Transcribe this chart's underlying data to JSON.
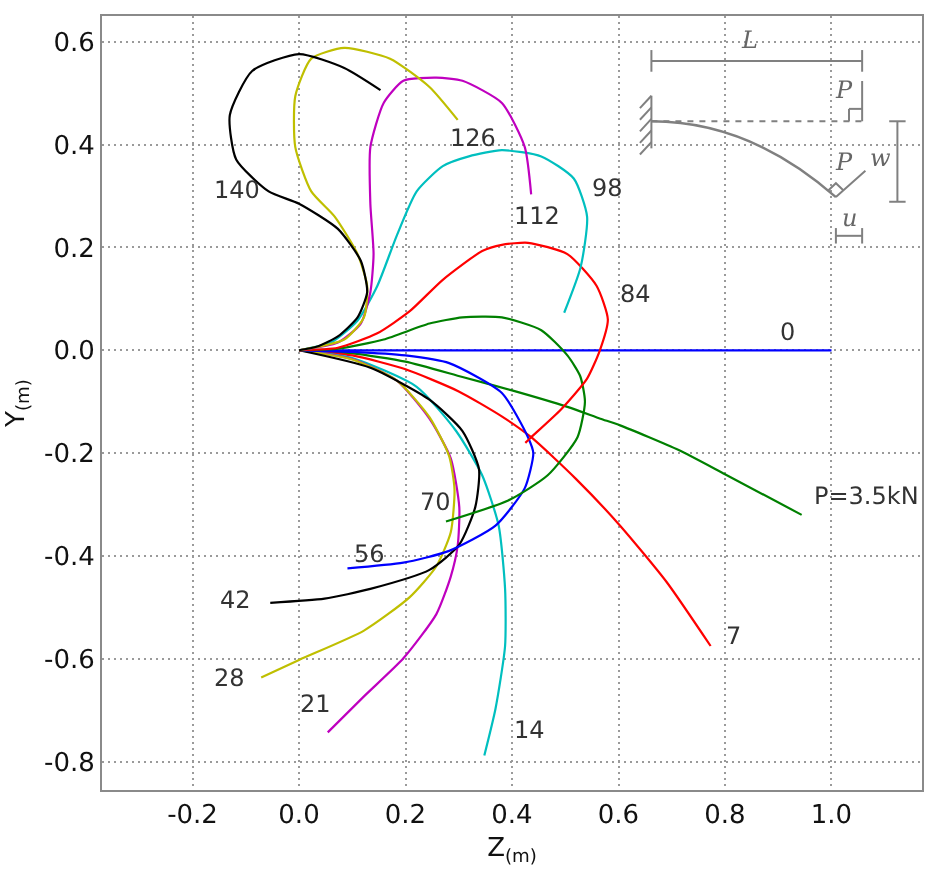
{
  "chart_data": {
    "type": "line",
    "xlabel": "Z$_{(m)}$",
    "ylabel": "Y$_{(m)}$",
    "xlim": [
      -0.37,
      1.17
    ],
    "ylim": [
      -0.855,
      0.65
    ],
    "xticks": [
      -0.2,
      {
        "value": 0,
        "label": "0.0"
      },
      0.2,
      0.4,
      0.6,
      0.8,
      {
        "value": 1,
        "label": "1.0"
      }
    ],
    "yticks": [
      -0.8,
      -0.6,
      -0.4,
      -0.2,
      {
        "value": 0,
        "label": "0.0"
      },
      0.2,
      0.4,
      0.6
    ],
    "grid": true,
    "legend": false,
    "series": [
      {
        "name": "0",
        "color": "#0000ff",
        "x": [
          0,
          1.0
        ],
        "values": [
          0,
          0
        ]
      },
      {
        "name": "P=3.5kN",
        "color": "#008000",
        "x": [
          0,
          0.1,
          0.2,
          0.307,
          0.4,
          0.504,
          0.566,
          0.603,
          0.713,
          0.8,
          0.944
        ],
        "values": [
          0,
          -0.006,
          -0.022,
          -0.052,
          -0.078,
          -0.11,
          -0.133,
          -0.146,
          -0.194,
          -0.241,
          -0.32
        ]
      },
      {
        "name": "7",
        "color": "#ff0000",
        "x": [
          0,
          0.1,
          0.2,
          0.3,
          0.38,
          0.436,
          0.52,
          0.603,
          0.69,
          0.773
        ],
        "values": [
          0,
          -0.01,
          -0.037,
          -0.08,
          -0.128,
          -0.169,
          -0.25,
          -0.341,
          -0.45,
          -0.575
        ]
      },
      {
        "name": "14",
        "color": "#00bfbf",
        "x": [
          0,
          0.1,
          0.221,
          0.295,
          0.344,
          0.375,
          0.387,
          0.387,
          0.369,
          0.348
        ],
        "values": [
          0,
          -0.015,
          -0.071,
          -0.157,
          -0.243,
          -0.341,
          -0.464,
          -0.575,
          -0.697,
          -0.788
        ]
      },
      {
        "name": "21",
        "color": "#bf00bf",
        "x": [
          0,
          0.1,
          0.184,
          0.245,
          0.285,
          0.301,
          0.298,
          0.285,
          0.258,
          0.196,
          0.122,
          0.054
        ],
        "values": [
          0,
          -0.017,
          -0.059,
          -0.133,
          -0.21,
          -0.305,
          -0.38,
          -0.44,
          -0.513,
          -0.599,
          -0.673,
          -0.743
        ]
      },
      {
        "name": "28",
        "color": "#bfbf00",
        "x": [
          0,
          0.1,
          0.184,
          0.245,
          0.282,
          0.292,
          0.285,
          0.258,
          0.208,
          0.122,
          0,
          -0.071
        ],
        "values": [
          0,
          -0.018,
          -0.059,
          -0.13,
          -0.206,
          -0.27,
          -0.354,
          -0.42,
          -0.48,
          -0.545,
          -0.602,
          -0.636
        ]
      },
      {
        "name": "42",
        "color": "#000000",
        "x": [
          0,
          0.134,
          0.245,
          0.307,
          0.338,
          0.331,
          0.301,
          0.245,
          0.134,
          0.048,
          -0.054
        ],
        "values": [
          0,
          -0.034,
          -0.096,
          -0.157,
          -0.231,
          -0.305,
          -0.378,
          -0.427,
          -0.464,
          -0.483,
          -0.491
        ]
      },
      {
        "name": "56",
        "color": "#0000ff",
        "x": [
          0,
          0.1,
          0.2,
          0.282,
          0.381,
          0.43,
          0.44,
          0.424,
          0.369,
          0.282,
          0.196,
          0.091
        ],
        "values": [
          0,
          -0.003,
          -0.01,
          -0.025,
          -0.083,
          -0.169,
          -0.2,
          -0.268,
          -0.341,
          -0.39,
          -0.413,
          -0.424
        ]
      },
      {
        "name": "70",
        "color": "#008000",
        "x": [
          0,
          0.073,
          0.159,
          0.245,
          0.307,
          0.381,
          0.455,
          0.504,
          0.528,
          0.537,
          0.523,
          0.467,
          0.393,
          0.276
        ],
        "values": [
          0,
          0.003,
          0.021,
          0.052,
          0.064,
          0.064,
          0.039,
          -0.01,
          -0.05,
          -0.1,
          -0.169,
          -0.243,
          -0.292,
          -0.333
        ]
      },
      {
        "name": "84",
        "color": "#ff0000",
        "x": [
          0,
          0.073,
          0.147,
          0.208,
          0.27,
          0.344,
          0.381,
          0.43,
          0.504,
          0.559,
          0.58,
          0.565,
          0.541,
          0.492,
          0.436,
          0.425
        ],
        "values": [
          0,
          0.005,
          0.033,
          0.076,
          0.137,
          0.193,
          0.205,
          0.209,
          0.187,
          0.125,
          0.06,
          0.0,
          -0.055,
          -0.115,
          -0.169,
          -0.18
        ]
      },
      {
        "name": "98",
        "color": "#00bfbf",
        "x": [
          0,
          0.06,
          0.11,
          0.147,
          0.184,
          0.221,
          0.27,
          0.319,
          0.381,
          0.455,
          0.516,
          0.541,
          0.529,
          0.498
        ],
        "values": [
          0,
          0.015,
          0.058,
          0.125,
          0.224,
          0.309,
          0.358,
          0.377,
          0.389,
          0.377,
          0.334,
          0.26,
          0.162,
          0.073
        ]
      },
      {
        "name": "112",
        "color": "#bf00bf",
        "x": [
          0,
          0.073,
          0.116,
          0.134,
          0.14,
          0.134,
          0.134,
          0.159,
          0.196,
          0.258,
          0.307,
          0.381,
          0.424,
          0.436
        ],
        "values": [
          0,
          0.015,
          0.052,
          0.113,
          0.187,
          0.285,
          0.395,
          0.481,
          0.524,
          0.53,
          0.524,
          0.481,
          0.395,
          0.303
        ]
      },
      {
        "name": "126",
        "color": "#bfbf00",
        "x": [
          0,
          0.085,
          0.122,
          0.128,
          0.11,
          0.067,
          0.023,
          -0.007,
          -0.007,
          0.023,
          0.085,
          0.171,
          0.245,
          0.298
        ],
        "values": [
          0,
          0.021,
          0.064,
          0.125,
          0.187,
          0.26,
          0.309,
          0.395,
          0.494,
          0.567,
          0.588,
          0.567,
          0.512,
          0.448
        ]
      },
      {
        "name": "140",
        "color": "#000000",
        "x": [
          0,
          0.036,
          0.073,
          0.11,
          0.128,
          0.116,
          0.073,
          0,
          -0.057,
          -0.118,
          -0.13,
          -0.088,
          0,
          0.085,
          0.153
        ],
        "values": [
          0,
          0.008,
          0.027,
          0.064,
          0.113,
          0.174,
          0.236,
          0.285,
          0.309,
          0.371,
          0.457,
          0.543,
          0.576,
          0.549,
          0.506
        ]
      }
    ],
    "annotations": [
      "L",
      "P",
      "P",
      "w",
      "u"
    ]
  }
}
